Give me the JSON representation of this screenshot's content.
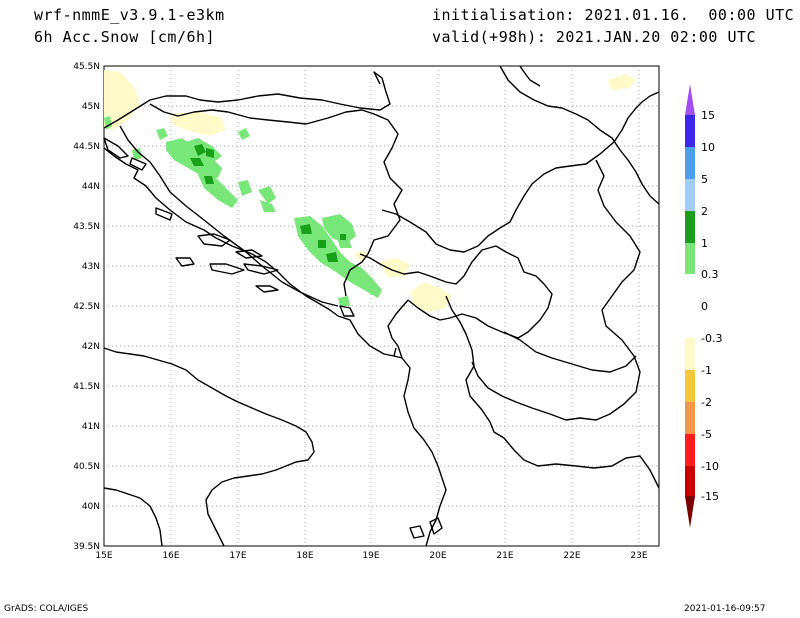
{
  "header": {
    "model": "wrf-nmmE_v3.9.1-e3km",
    "field": "6h Acc.Snow [cm/6h]",
    "init": "initialisation: 2021.01.16.  00:00 UTC",
    "valid": "valid(+98h): 2021.JAN.20 02:00 UTC"
  },
  "footer": {
    "left": "GrADS: COLA/IGES",
    "right": "2021-01-16-09:57"
  },
  "map": {
    "lat_labels": [
      "45.5N",
      "45N",
      "44.5N",
      "44N",
      "43.5N",
      "43N",
      "42.5N",
      "42N",
      "41.5N",
      "41N",
      "40.5N",
      "40N",
      "39.5N"
    ],
    "lon_labels": [
      "15E",
      "16E",
      "17E",
      "18E",
      "19E",
      "20E",
      "21E",
      "22E",
      "23E"
    ],
    "lon_range": [
      15,
      23.3
    ],
    "lat_range": [
      39.5,
      45.5
    ]
  },
  "colorbar": {
    "labels": [
      "15",
      "10",
      "5",
      "2",
      "1",
      "0.3",
      "0",
      "-0.3",
      "-1",
      "-2",
      "-5",
      "-10",
      "-15"
    ],
    "colors": [
      "#3c28e6",
      "#4b9ff0",
      "#a0cdf5",
      "#19a019",
      "#78e678",
      "#ffffff",
      "#ffffff",
      "#fffac8",
      "#f5c83c",
      "#f59646",
      "#ff1e1e",
      "#c80000",
      "#8c0000"
    ],
    "top_arrow_color": "#a050f0",
    "bottom_arrow_color": "#7a0000"
  }
}
